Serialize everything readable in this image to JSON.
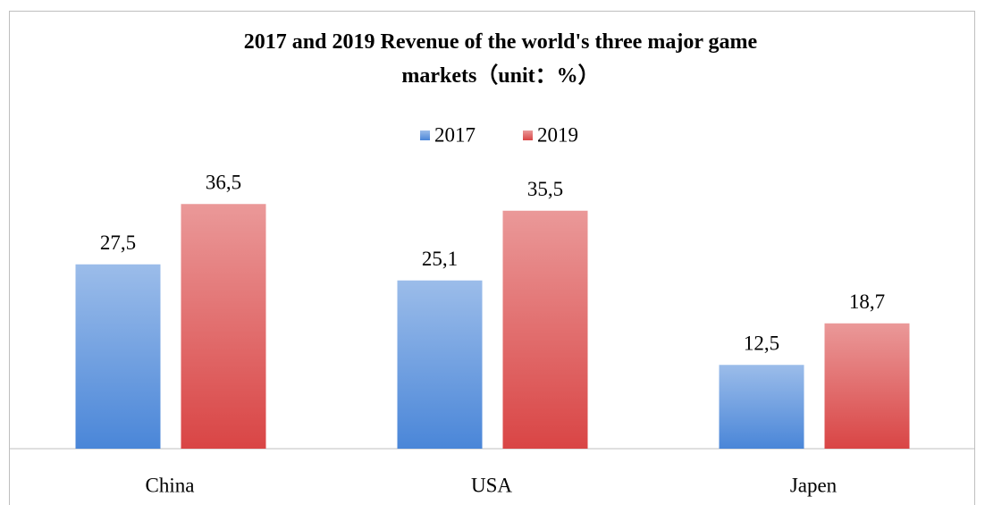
{
  "chart_data": {
    "type": "bar",
    "title": "2017 and 2019 Revenue of the world's three major game markets（unit：%）",
    "categories": [
      "China",
      "USA",
      "Japen"
    ],
    "series": [
      {
        "name": "2017",
        "color": "#4a86d8",
        "values": [
          27.5,
          25.1,
          12.5
        ],
        "value_labels": [
          "27,5",
          "25,1",
          "12,5"
        ]
      },
      {
        "name": "2019",
        "color": "#d94545",
        "values": [
          36.5,
          35.5,
          18.7
        ],
        "value_labels": [
          "36,5",
          "35,5",
          "18,7"
        ]
      }
    ],
    "ylim": [
      0,
      40
    ],
    "legend": "top"
  }
}
